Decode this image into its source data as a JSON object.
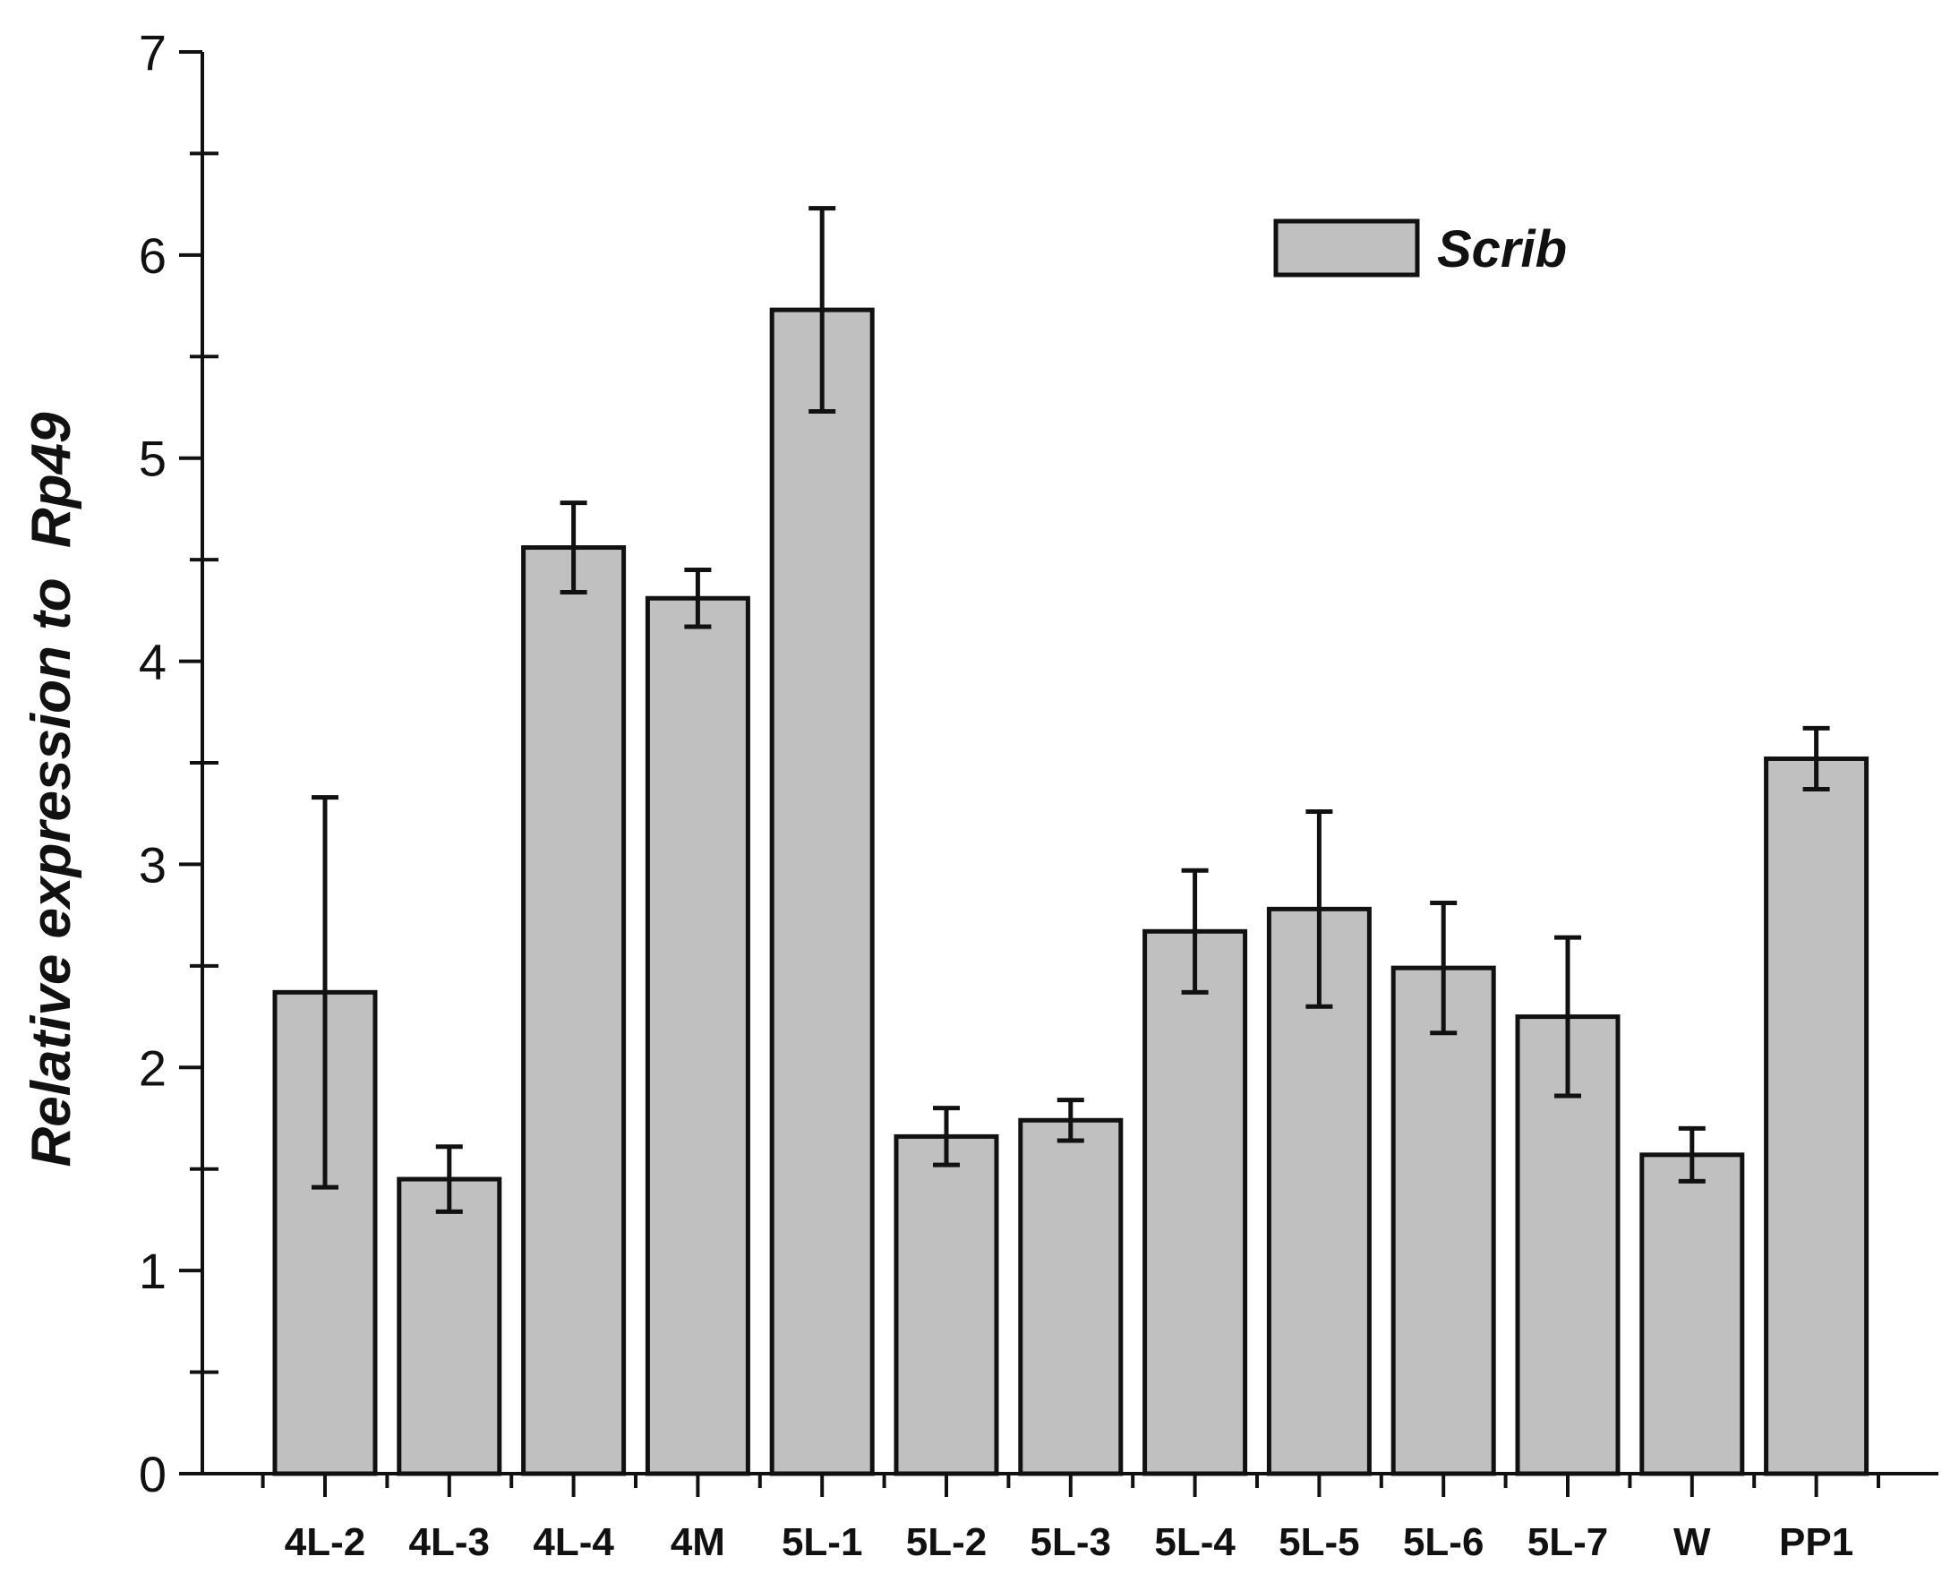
{
  "chart_data": {
    "type": "bar",
    "title": "",
    "xlabel": "",
    "ylabel": "Relative expression to",
    "ylabel_italic_gene": "Rp49",
    "ylim": [
      0,
      7
    ],
    "yticks": [
      "0",
      "1",
      "2",
      "3",
      "4",
      "5",
      "6",
      "7"
    ],
    "categories": [
      "4L-2",
      "4L-3",
      "4L-4",
      "4M",
      "5L-1",
      "5L-2",
      "5L-3",
      "5L-4",
      "5L-5",
      "5L-6",
      "5L-7",
      "W",
      "PP1"
    ],
    "series": [
      {
        "name": "Scrib",
        "color": "#c0c0c0",
        "values": [
          2.37,
          1.45,
          4.56,
          4.31,
          5.73,
          1.66,
          1.74,
          2.67,
          2.78,
          2.49,
          2.25,
          1.57,
          3.52
        ],
        "errors": [
          0.96,
          0.16,
          0.22,
          0.14,
          0.5,
          0.14,
          0.1,
          0.3,
          0.48,
          0.32,
          0.39,
          0.13,
          0.15
        ]
      }
    ],
    "legend_position": "top-right",
    "grid": false
  }
}
